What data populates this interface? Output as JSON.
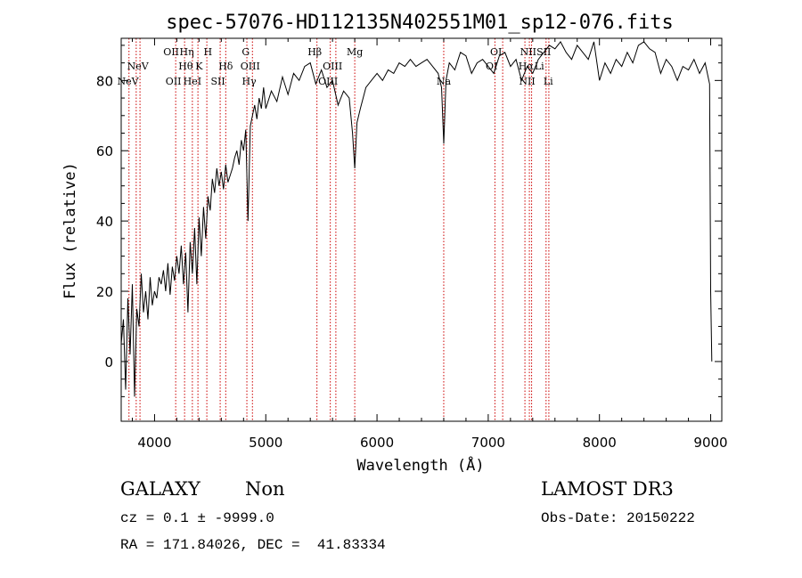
{
  "chart_data": {
    "type": "line",
    "title": "spec-57076-HD112135N402551M01_sp12-076.fits",
    "xlabel": "Wavelength (Å)",
    "ylabel": "Flux (relative)",
    "xlim": [
      3700,
      9100
    ],
    "ylim": [
      -17,
      92
    ],
    "xticks": [
      4000,
      5000,
      6000,
      7000,
      8000,
      9000
    ],
    "yticks": [
      0,
      20,
      40,
      60,
      80
    ],
    "grid": false,
    "line_color": "#000000",
    "marker_color": "#cc0000",
    "series": [
      {
        "x": [
          3700,
          3720,
          3740,
          3760,
          3780,
          3800,
          3820,
          3840,
          3860,
          3880,
          3900,
          3920,
          3940,
          3960,
          3980,
          4000,
          4020,
          4040,
          4060,
          4080,
          4100,
          4120,
          4140,
          4160,
          4180,
          4200,
          4220,
          4240,
          4260,
          4280,
          4300,
          4320,
          4340,
          4360,
          4380,
          4400,
          4420,
          4440,
          4460,
          4480,
          4500,
          4520,
          4540,
          4560,
          4580,
          4600,
          4620,
          4640,
          4660,
          4680,
          4700,
          4720,
          4740,
          4760,
          4780,
          4800,
          4820,
          4840,
          4861,
          4880,
          4900,
          4920,
          4940,
          4960,
          4980,
          5000,
          5050,
          5100,
          5150,
          5200,
          5250,
          5300,
          5350,
          5400,
          5450,
          5500,
          5550,
          5600,
          5650,
          5700,
          5750,
          5780,
          5800,
          5820,
          5850,
          5900,
          5950,
          6000,
          6050,
          6100,
          6150,
          6200,
          6250,
          6300,
          6350,
          6400,
          6450,
          6500,
          6550,
          6580,
          6600,
          6620,
          6650,
          6700,
          6750,
          6800,
          6850,
          6900,
          6950,
          7000,
          7050,
          7100,
          7150,
          7200,
          7250,
          7300,
          7350,
          7400,
          7450,
          7500,
          7550,
          7600,
          7650,
          7700,
          7750,
          7800,
          7850,
          7900,
          7950,
          8000,
          8050,
          8100,
          8150,
          8200,
          8250,
          8300,
          8350,
          8400,
          8450,
          8500,
          8550,
          8600,
          8650,
          8700,
          8750,
          8800,
          8850,
          8900,
          8950,
          8990,
          9000,
          9010
        ],
        "y": [
          5,
          12,
          -8,
          18,
          2,
          22,
          -10,
          15,
          10,
          25,
          14,
          20,
          12,
          24,
          16,
          20,
          18,
          24,
          22,
          26,
          20,
          28,
          19,
          27,
          23,
          30,
          25,
          33,
          22,
          31,
          14,
          34,
          25,
          38,
          22,
          41,
          30,
          44,
          35,
          47,
          43,
          52,
          48,
          55,
          50,
          54,
          49,
          56,
          51,
          53,
          55,
          58,
          60,
          56,
          63,
          60,
          66,
          40,
          67,
          70,
          73,
          69,
          75,
          72,
          78,
          72,
          77,
          74,
          81,
          76,
          82,
          80,
          84,
          85,
          79,
          83,
          78,
          80,
          73,
          77,
          75,
          65,
          55,
          68,
          72,
          78,
          80,
          82,
          80,
          83,
          82,
          85,
          84,
          86,
          84,
          85,
          86,
          84,
          82,
          78,
          62,
          80,
          85,
          83,
          88,
          87,
          82,
          85,
          86,
          84,
          82,
          87,
          88,
          84,
          86,
          80,
          84,
          82,
          86,
          88,
          90,
          89,
          91,
          88,
          86,
          90,
          88,
          86,
          91,
          80,
          85,
          82,
          86,
          84,
          88,
          85,
          90,
          91,
          89,
          88,
          82,
          86,
          84,
          80,
          84,
          83,
          86,
          82,
          85,
          79,
          20,
          0
        ],
        "values": [
          5,
          12,
          -8,
          18,
          2,
          22,
          -10,
          15,
          10,
          25,
          14,
          20,
          12,
          24,
          16,
          20,
          18,
          24,
          22,
          26,
          20,
          28,
          19,
          27,
          23,
          30,
          25,
          33,
          22,
          31,
          14,
          34,
          25,
          38,
          22,
          41,
          30,
          44,
          35,
          47,
          43,
          52,
          48,
          55,
          50,
          54,
          49,
          56,
          51,
          53,
          55,
          58,
          60,
          56,
          63,
          60,
          66,
          40,
          67,
          70,
          73,
          69,
          75,
          72,
          78,
          72,
          77,
          74,
          81,
          76,
          82,
          80,
          84,
          85,
          79,
          83,
          78,
          80,
          73,
          77,
          75,
          65,
          55,
          68,
          72,
          78,
          80,
          82,
          80,
          83,
          82,
          85,
          84,
          86,
          84,
          85,
          86,
          84,
          82,
          78,
          62,
          80,
          85,
          83,
          88,
          87,
          82,
          85,
          86,
          84,
          82,
          87,
          88,
          84,
          86,
          80,
          84,
          82,
          86,
          88,
          90,
          89,
          91,
          88,
          86,
          90,
          88,
          86,
          91,
          80,
          85,
          82,
          86,
          84,
          88,
          85,
          90,
          91,
          89,
          88,
          82,
          86,
          84,
          80,
          84,
          83,
          86,
          82,
          85,
          79,
          20,
          0
        ]
      }
    ],
    "line_markers": {
      "wavelengths": [
        3770,
        3835,
        3869,
        4190,
        4270,
        4340,
        4390,
        4470,
        4590,
        4640,
        4830,
        4880,
        5460,
        5580,
        5630,
        5800,
        6600,
        7060,
        7130,
        7330,
        7370,
        7390,
        7520,
        7545
      ],
      "top_labels_row1": [
        {
          "text": "OII",
          "x": 4150
        },
        {
          "text": "Hη",
          "x": 4290
        },
        {
          "text": "H",
          "x": 4480
        },
        {
          "text": "G",
          "x": 4820
        },
        {
          "text": "Hβ",
          "x": 5440
        },
        {
          "text": "Mg",
          "x": 5800
        },
        {
          "text": "OI",
          "x": 7070
        },
        {
          "text": "NII",
          "x": 7360
        },
        {
          "text": "SII",
          "x": 7500
        }
      ],
      "top_labels_row2": [
        {
          "text": "NeV",
          "x": 3850
        },
        {
          "text": "Hθ",
          "x": 4280
        },
        {
          "text": "K",
          "x": 4400
        },
        {
          "text": "Hδ",
          "x": 4640
        },
        {
          "text": "OIII",
          "x": 4860
        },
        {
          "text": "OIII",
          "x": 5600
        },
        {
          "text": "OI",
          "x": 7030
        },
        {
          "text": "Hα",
          "x": 7340
        },
        {
          "text": "Li",
          "x": 7460
        }
      ],
      "top_labels_row3": [
        {
          "text": "NeV",
          "x": 3760
        },
        {
          "text": "OII",
          "x": 4170
        },
        {
          "text": "HeI",
          "x": 4340
        },
        {
          "text": "SII",
          "x": 4570
        },
        {
          "text": "Hγ",
          "x": 4850
        },
        {
          "text": "OIII",
          "x": 5560
        },
        {
          "text": "Na",
          "x": 6600
        },
        {
          "text": "NII",
          "x": 7350
        },
        {
          "text": "Li",
          "x": 7540
        }
      ]
    }
  },
  "footer": {
    "object_class": "GALAXY",
    "subclass": "Non",
    "survey": "LAMOST DR3",
    "redshift": "cz = 0.1 ± -9999.0",
    "obs_date": "Obs-Date: 20150222",
    "coords": "RA = 171.84026, DEC =  41.83334"
  }
}
